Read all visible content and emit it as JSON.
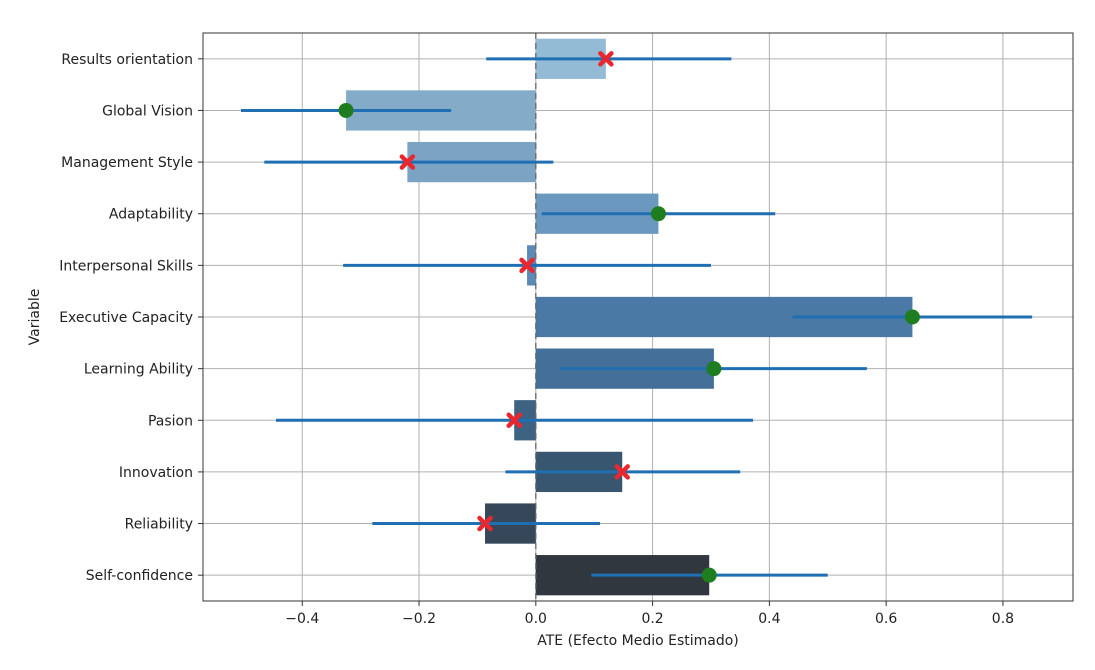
{
  "chart_data": {
    "type": "bar",
    "orientation": "horizontal",
    "xlabel": "ATE (Efecto Medio Estimado)",
    "ylabel": "Variable",
    "xlim": [
      -0.57,
      0.92
    ],
    "xticks": [
      -0.4,
      -0.2,
      0.0,
      0.2,
      0.4,
      0.6,
      0.8
    ],
    "xtick_labels": [
      "−0.4",
      "−0.2",
      "0.0",
      "0.2",
      "0.4",
      "0.6",
      "0.8"
    ],
    "grid": true,
    "zero_line": "dashed",
    "marker_legend": {
      "significant": "green circle",
      "not_significant": "red cross"
    },
    "categories": [
      "Results orientation",
      "Global Vision",
      "Management Style",
      "Adaptability",
      "Interpersonal Skills",
      "Executive Capacity",
      "Learning Ability",
      "Pasion",
      "Innovation",
      "Reliability",
      "Self-confidence"
    ],
    "values": [
      0.12,
      -0.325,
      -0.22,
      0.21,
      -0.015,
      0.645,
      0.305,
      -0.037,
      0.148,
      -0.087,
      0.297
    ],
    "ci_low": [
      -0.085,
      -0.505,
      -0.465,
      0.01,
      -0.33,
      0.44,
      0.04,
      -0.445,
      -0.052,
      -0.28,
      0.095
    ],
    "ci_high": [
      0.335,
      -0.145,
      0.03,
      0.41,
      0.3,
      0.85,
      0.567,
      0.372,
      0.35,
      0.11,
      0.5
    ],
    "significant": [
      false,
      true,
      false,
      true,
      false,
      true,
      true,
      false,
      false,
      false,
      true
    ],
    "bar_colors": [
      "#94bbd6",
      "#84abc8",
      "#7aa3c4",
      "#6a98bf",
      "#5a8ab5",
      "#4a79a6",
      "#436f98",
      "#3d6282",
      "#395670",
      "#36475a",
      "#31373e"
    ],
    "colors": {
      "ci_line": "#1f6fb2",
      "significant_marker": "#1e7d1e",
      "nonsignificant_marker": "#e8282e",
      "grid": "#b0b0b0",
      "axis": "#333333",
      "zero_line": "#666666"
    }
  }
}
